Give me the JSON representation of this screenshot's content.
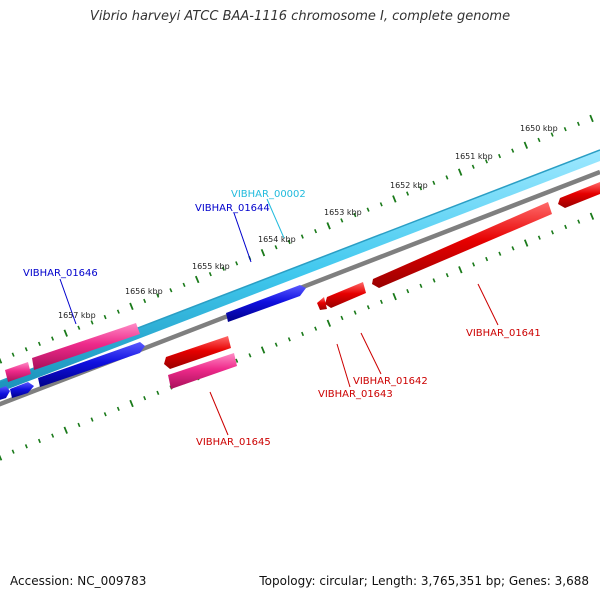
{
  "title": "Vibrio harveyi ATCC BAA-1116 chromosome I, complete genome",
  "footer": {
    "accession": "Accession: NC_009783",
    "topology": "Topology: circular; Length: 3,765,351 bp; Genes: 3,688"
  },
  "colors": {
    "forward_cds": "#0000dd",
    "reverse_cds": "#dd0000",
    "other_feature": "#ee2a8a",
    "trna": "#33ccee",
    "backbone_light": "#40c8ee",
    "backbone_dark": "#808080",
    "tick": "#1a7a1a",
    "forward_label": "#0000cc",
    "reverse_label": "#cc0000",
    "trna_label": "#22bbdd"
  },
  "kbp_labels": [
    "1650 kbp",
    "1651 kbp",
    "1652 kbp",
    "1653 kbp",
    "1654 kbp",
    "1655 kbp",
    "1656 kbp",
    "1657 kbp"
  ],
  "gene_labels": [
    {
      "name": "vibhar-00002-label",
      "text": "VIBHAR_00002",
      "color": "#22bbdd"
    },
    {
      "name": "vibhar-01644-label",
      "text": "VIBHAR_01644",
      "color": "#0000cc"
    },
    {
      "name": "vibhar-01646-label",
      "text": "VIBHAR_01646",
      "color": "#0000cc"
    },
    {
      "name": "vibhar-01641-label",
      "text": "VIBHAR_01641",
      "color": "#cc0000"
    },
    {
      "name": "vibhar-01642-label",
      "text": "VIBHAR_01642",
      "color": "#cc0000"
    },
    {
      "name": "vibhar-01643-label",
      "text": "VIBHAR_01643",
      "color": "#cc0000"
    },
    {
      "name": "vibhar-01645-label",
      "text": "VIBHAR_01645",
      "color": "#cc0000"
    }
  ]
}
